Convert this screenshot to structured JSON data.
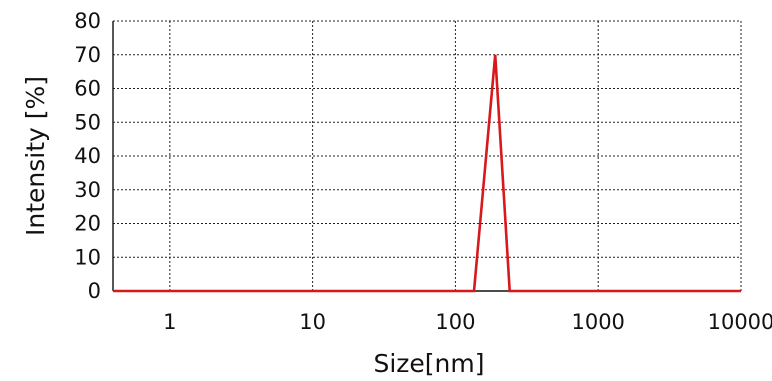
{
  "chart_data": {
    "type": "line",
    "xlabel": "Size[nm]",
    "ylabel": "Intensity [%]",
    "x_scale": "log",
    "xlim": [
      0.4,
      10000
    ],
    "ylim": [
      0,
      80
    ],
    "x_ticks": [
      1,
      10,
      100,
      1000,
      10000
    ],
    "x_tick_labels": [
      "1",
      "10",
      "100",
      "1000",
      "10000"
    ],
    "y_ticks": [
      0,
      10,
      20,
      30,
      40,
      50,
      60,
      70,
      80
    ],
    "y_tick_labels": [
      "0",
      "10",
      "20",
      "30",
      "40",
      "50",
      "60",
      "70",
      "80"
    ],
    "grid": true,
    "legend": "none",
    "series": [
      {
        "color": "#d7191c",
        "x": [
          0.4,
          135,
          190,
          240,
          10000
        ],
        "y": [
          0,
          0,
          70,
          0,
          0
        ]
      }
    ]
  }
}
